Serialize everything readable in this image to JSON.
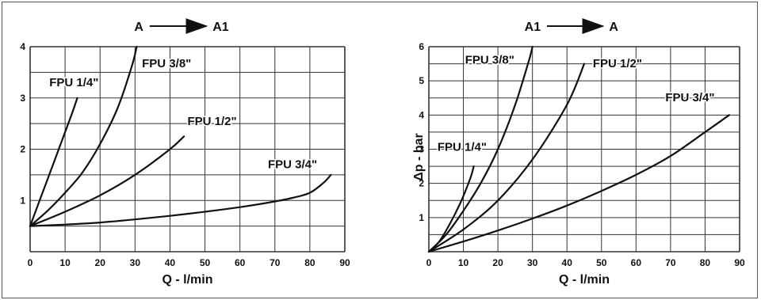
{
  "chart_data": [
    {
      "type": "line",
      "title": "",
      "direction": {
        "from": "A",
        "to": "A1"
      },
      "xlabel": "Q - l/min",
      "ylabel": "",
      "xlim": [
        0,
        90
      ],
      "ylim": [
        0,
        4
      ],
      "xticks": [
        "0",
        "10",
        "20",
        "30",
        "40",
        "50",
        "60",
        "70",
        "80",
        "90"
      ],
      "yticks": [
        "1",
        "2",
        "3",
        "4"
      ],
      "grid": true,
      "series": [
        {
          "name": "FPU 1/4\"",
          "x": [
            0,
            3,
            6,
            9,
            12,
            13.5
          ],
          "y": [
            0.5,
            1.05,
            1.6,
            2.15,
            2.7,
            3.0
          ]
        },
        {
          "name": "FPU 3/8\"",
          "x": [
            0,
            5,
            10,
            15,
            20,
            25,
            29,
            30.5
          ],
          "y": [
            0.5,
            0.8,
            1.15,
            1.55,
            2.1,
            2.8,
            3.6,
            4.0
          ]
        },
        {
          "name": "FPU 1/2\"",
          "x": [
            0,
            10,
            20,
            30,
            40,
            44
          ],
          "y": [
            0.5,
            0.78,
            1.1,
            1.5,
            2.0,
            2.25
          ]
        },
        {
          "name": "FPU 3/4\"",
          "x": [
            0,
            10,
            20,
            30,
            40,
            50,
            60,
            70,
            75,
            80,
            84,
            86
          ],
          "y": [
            0.5,
            0.53,
            0.57,
            0.63,
            0.7,
            0.78,
            0.87,
            0.98,
            1.05,
            1.15,
            1.35,
            1.5
          ]
        }
      ],
      "labels": [
        {
          "text": "FPU 1/4\"",
          "x": 5.5,
          "y": 3.23
        },
        {
          "text": "FPU 3/8\"",
          "x": 32,
          "y": 3.6
        },
        {
          "text": "FPU 1/2\"",
          "x": 45,
          "y": 2.47
        },
        {
          "text": "FPU 3/4\"",
          "x": 68,
          "y": 1.63
        }
      ]
    },
    {
      "type": "line",
      "title": "",
      "direction": {
        "from": "A1",
        "to": "A"
      },
      "xlabel": "Q - l/min",
      "ylabel": "Δp - bar",
      "xlim": [
        0,
        90
      ],
      "ylim": [
        0,
        6
      ],
      "xticks": [
        "0",
        "10",
        "20",
        "30",
        "40",
        "50",
        "60",
        "70",
        "80",
        "90"
      ],
      "yticks": [
        "1",
        "2",
        "3",
        "4",
        "5",
        "6"
      ],
      "grid": true,
      "series": [
        {
          "name": "FPU 1/4\"",
          "x": [
            0,
            3,
            6,
            9,
            12,
            13
          ],
          "y": [
            0,
            0.3,
            0.8,
            1.4,
            2.15,
            2.5
          ]
        },
        {
          "name": "FPU 3/8\"",
          "x": [
            0,
            5,
            10,
            15,
            20,
            25,
            29,
            30
          ],
          "y": [
            0,
            0.5,
            1.2,
            2.0,
            3.0,
            4.3,
            5.6,
            6.0
          ]
        },
        {
          "name": "FPU 1/2\"",
          "x": [
            0,
            10,
            20,
            30,
            40,
            45
          ],
          "y": [
            0,
            0.65,
            1.5,
            2.7,
            4.3,
            5.5
          ]
        },
        {
          "name": "FPU 3/4\"",
          "x": [
            0,
            10,
            20,
            30,
            40,
            50,
            60,
            70,
            80,
            87
          ],
          "y": [
            0,
            0.3,
            0.62,
            0.97,
            1.35,
            1.78,
            2.25,
            2.8,
            3.5,
            4.0
          ]
        }
      ],
      "labels": [
        {
          "text": "FPU 1/4\"",
          "x": 2.5,
          "y": 2.95
        },
        {
          "text": "FPU 3/8\"",
          "x": 10.5,
          "y": 5.5
        },
        {
          "text": "FPU 1/2\"",
          "x": 47.5,
          "y": 5.4
        },
        {
          "text": "FPU 3/4\"",
          "x": 68.5,
          "y": 4.4
        }
      ]
    }
  ]
}
